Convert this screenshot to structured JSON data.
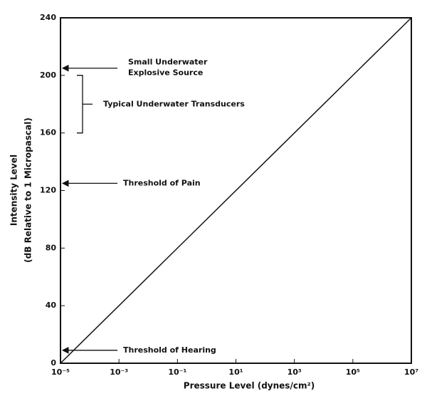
{
  "chart_data": {
    "type": "line",
    "ylabel": [
      "Intensity Level",
      "(dB Relative to 1 Micropascal)"
    ],
    "xlabel": "Pressure Level (dynes/cm²)",
    "xscale": "log",
    "x": [
      1e-05,
      10000000
    ],
    "values": [
      0,
      240
    ],
    "color": "#000000",
    "xlim": [
      1e-05,
      10000000
    ],
    "ylim": [
      0,
      240
    ],
    "xticks": [
      {
        "value": 1e-05,
        "label": "10⁻⁵"
      },
      {
        "value": 0.001,
        "label": "10⁻³"
      },
      {
        "value": 0.1,
        "label": "10⁻¹"
      },
      {
        "value": 10,
        "label": "10¹"
      },
      {
        "value": 1000,
        "label": "10³"
      },
      {
        "value": 100000,
        "label": "10⁵"
      },
      {
        "value": 10000000,
        "label": "10⁷"
      }
    ],
    "yticks": [
      0,
      40,
      80,
      120,
      160,
      200,
      240
    ],
    "annotations": [
      {
        "text": [
          "Small Underwater",
          "Explosive Source"
        ],
        "y": 205
      },
      {
        "text": [
          "Typical Underwater Transducers"
        ],
        "y": [
          160,
          200
        ]
      },
      {
        "text": [
          "Threshold of Pain"
        ],
        "y": 125
      },
      {
        "text": [
          "Threshold of Hearing"
        ],
        "y": 9
      }
    ]
  }
}
